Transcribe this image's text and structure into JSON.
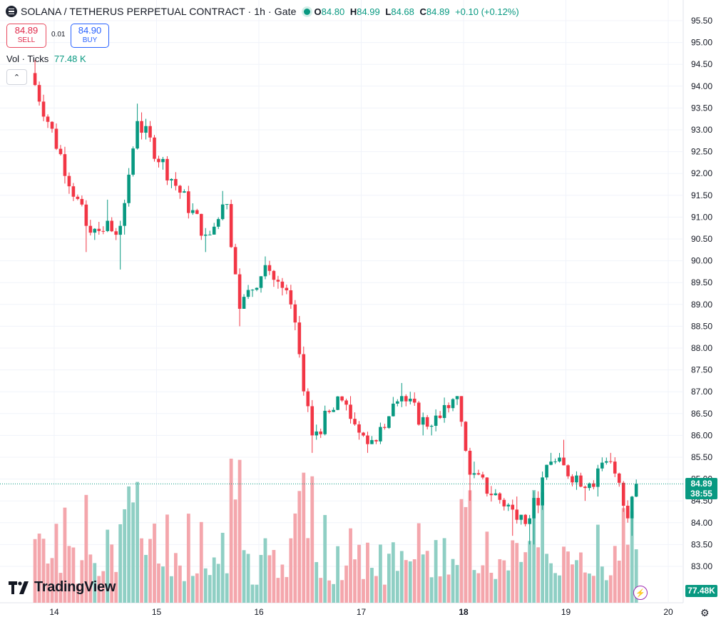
{
  "header": {
    "title": "SOLANA / TETHERUS PERPETUAL CONTRACT · 1h · Gate",
    "ohlc": [
      {
        "k": "O",
        "v": "84.80"
      },
      {
        "k": "H",
        "v": "84.99"
      },
      {
        "k": "L",
        "v": "84.68"
      },
      {
        "k": "C",
        "v": "84.89"
      }
    ],
    "change": "+0.10 (+0.12%)"
  },
  "trade": {
    "sell_price": "84.89",
    "sell_label": "SELL",
    "spread": "0.01",
    "buy_price": "84.90",
    "buy_label": "BUY"
  },
  "volume_legend": {
    "label": "Vol · Ticks",
    "value": "77.48 K"
  },
  "logo_text": "TradingView",
  "price_label": {
    "value": "84.89",
    "countdown": "38:55"
  },
  "volume_label": "77.48K",
  "colors": {
    "up": "#089981",
    "down": "#f23645",
    "up_vol": "#8fcfc4",
    "down_vol": "#f4a6ac"
  },
  "chart_data": {
    "type": "candlestick",
    "y_axis_ticks": [
      "95.50",
      "95.00",
      "94.50",
      "94.00",
      "93.50",
      "93.00",
      "92.50",
      "92.00",
      "91.50",
      "91.00",
      "90.50",
      "90.00",
      "89.50",
      "89.00",
      "88.50",
      "88.00",
      "87.50",
      "87.00",
      "86.50",
      "86.00",
      "85.50",
      "85.00",
      "84.50",
      "84.00",
      "83.50",
      "83.00"
    ],
    "x_axis_ticks": [
      "14",
      "15",
      "16",
      "17",
      "18",
      "19",
      "20"
    ],
    "ylim": [
      82.5,
      95.8
    ],
    "last_price": 84.89,
    "grid": true,
    "segments": [
      {
        "from": "13 19:00",
        "to": "14 08:00",
        "start": 94.3,
        "end": 90.8,
        "low": 90.2,
        "high": 94.6
      },
      {
        "from": "14 08:00",
        "to": "14 16:00",
        "start": 90.8,
        "end": 90.8,
        "low": 89.8,
        "high": 91.4
      },
      {
        "from": "14 16:00",
        "to": "14 20:00",
        "start": 90.8,
        "end": 93.2,
        "low": 90.6,
        "high": 93.6
      },
      {
        "from": "14 20:00",
        "to": "15 12:00",
        "start": 93.2,
        "end": 90.6,
        "low": 90.2,
        "high": 93.4
      },
      {
        "from": "15 12:00",
        "to": "15 17:00",
        "start": 90.6,
        "end": 91.3,
        "low": 90.6,
        "high": 91.6
      },
      {
        "from": "15 17:00",
        "to": "15 20:00",
        "start": 91.3,
        "end": 88.9,
        "low": 88.5,
        "high": 91.4
      },
      {
        "from": "15 20:00",
        "to": "16 02:00",
        "start": 88.9,
        "end": 89.9,
        "low": 88.9,
        "high": 90.1
      },
      {
        "from": "16 02:00",
        "to": "16 08:00",
        "start": 89.9,
        "end": 89.0,
        "low": 88.9,
        "high": 90.0
      },
      {
        "from": "16 08:00",
        "to": "16 13:00",
        "start": 89.0,
        "end": 86.0,
        "low": 85.6,
        "high": 89.1
      },
      {
        "from": "16 13:00",
        "to": "16 20:00",
        "start": 86.0,
        "end": 86.8,
        "low": 85.9,
        "high": 86.9
      },
      {
        "from": "16 20:00",
        "to": "17 02:00",
        "start": 86.8,
        "end": 85.8,
        "low": 85.6,
        "high": 86.9
      },
      {
        "from": "17 02:00",
        "to": "17 10:00",
        "start": 85.8,
        "end": 86.9,
        "low": 85.8,
        "high": 87.2
      },
      {
        "from": "17 10:00",
        "to": "17 16:00",
        "start": 86.9,
        "end": 86.2,
        "low": 86.0,
        "high": 87.0
      },
      {
        "from": "17 16:00",
        "to": "17 23:00",
        "start": 86.2,
        "end": 86.9,
        "low": 86.0,
        "high": 86.9
      },
      {
        "from": "17 23:00",
        "to": "18 02:00",
        "start": 86.9,
        "end": 85.1,
        "low": 84.5,
        "high": 86.9
      },
      {
        "from": "18 02:00",
        "to": "18 12:00",
        "start": 85.1,
        "end": 84.3,
        "low": 83.7,
        "high": 85.4
      },
      {
        "from": "18 12:00",
        "to": "18 16:00",
        "start": 84.3,
        "end": 84.1,
        "low": 83.5,
        "high": 84.6
      },
      {
        "from": "18 16:00",
        "to": "18 21:00",
        "start": 84.1,
        "end": 85.4,
        "low": 83.5,
        "high": 85.6
      },
      {
        "from": "18 21:00",
        "to": "19 06:00",
        "start": 85.4,
        "end": 84.9,
        "low": 84.5,
        "high": 85.9
      },
      {
        "from": "19 06:00",
        "to": "19 11:00",
        "start": 84.9,
        "end": 85.4,
        "low": 84.6,
        "high": 85.6
      },
      {
        "from": "19 11:00",
        "to": "19 15:00",
        "start": 85.4,
        "end": 84.1,
        "low": 84.0,
        "high": 85.5
      },
      {
        "from": "19 15:00",
        "to": "19 17:00",
        "start": 84.1,
        "end": 84.89,
        "low": 83.7,
        "high": 84.99
      }
    ]
  }
}
